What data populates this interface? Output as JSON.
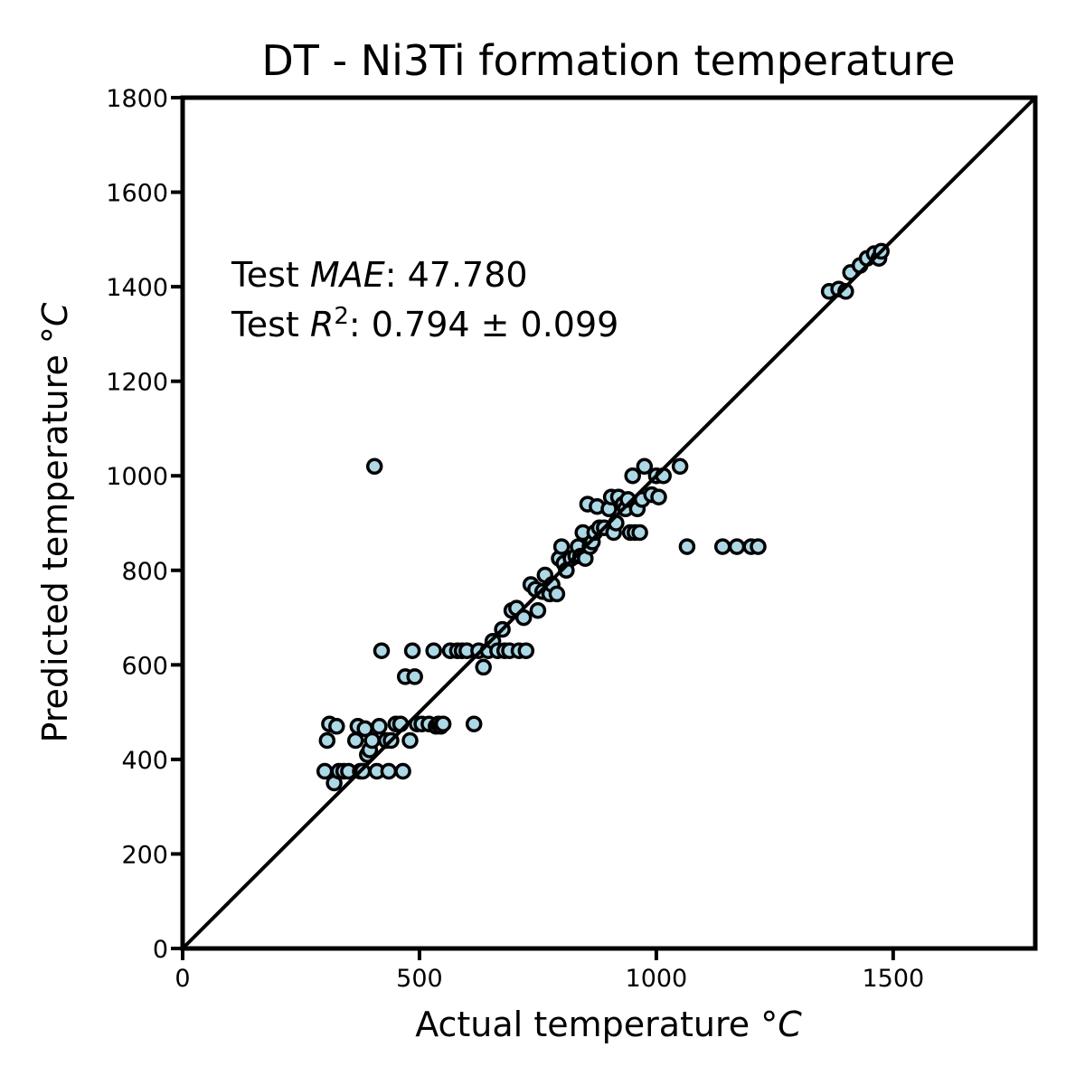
{
  "chart_data": {
    "type": "scatter",
    "title": "DT - Ni3Ti formation temperature",
    "xlabel": "Actual temperature",
    "xlabel_unit": "°C",
    "ylabel": "Predicted temperature",
    "ylabel_unit": "°C",
    "xlim": [
      0,
      1800
    ],
    "ylim": [
      0,
      1800
    ],
    "xticks": [
      0,
      500,
      1000,
      1500
    ],
    "yticks": [
      0,
      200,
      400,
      600,
      800,
      1000,
      1200,
      1400,
      1600,
      1800
    ],
    "reference_line": "y = x",
    "grid": false,
    "marker_color": "#add8e6",
    "marker_edge_color": "#000000",
    "annotations": {
      "mae_prefix": "Test ",
      "mae_symbol": "MAE",
      "mae_value": ": 47.780",
      "r2_prefix": "Test ",
      "r2_symbol": "R",
      "r2_sup": "2",
      "r2_value": ": 0.794 ± 0.099"
    },
    "points": [
      [
        300,
        375
      ],
      [
        305,
        440
      ],
      [
        310,
        475
      ],
      [
        320,
        350
      ],
      [
        325,
        470
      ],
      [
        330,
        375
      ],
      [
        340,
        375
      ],
      [
        350,
        375
      ],
      [
        365,
        440
      ],
      [
        370,
        470
      ],
      [
        375,
        375
      ],
      [
        380,
        375
      ],
      [
        385,
        465
      ],
      [
        390,
        410
      ],
      [
        395,
        420
      ],
      [
        400,
        440
      ],
      [
        405,
        1020
      ],
      [
        410,
        375
      ],
      [
        415,
        470
      ],
      [
        420,
        630
      ],
      [
        430,
        440
      ],
      [
        435,
        375
      ],
      [
        440,
        440
      ],
      [
        450,
        475
      ],
      [
        460,
        475
      ],
      [
        465,
        375
      ],
      [
        470,
        575
      ],
      [
        480,
        440
      ],
      [
        485,
        630
      ],
      [
        490,
        575
      ],
      [
        495,
        475
      ],
      [
        505,
        475
      ],
      [
        520,
        475
      ],
      [
        530,
        630
      ],
      [
        535,
        470
      ],
      [
        540,
        475
      ],
      [
        545,
        470
      ],
      [
        550,
        475
      ],
      [
        565,
        630
      ],
      [
        580,
        630
      ],
      [
        590,
        630
      ],
      [
        600,
        630
      ],
      [
        615,
        475
      ],
      [
        625,
        630
      ],
      [
        635,
        595
      ],
      [
        645,
        630
      ],
      [
        655,
        650
      ],
      [
        665,
        630
      ],
      [
        675,
        675
      ],
      [
        680,
        630
      ],
      [
        690,
        630
      ],
      [
        695,
        715
      ],
      [
        705,
        720
      ],
      [
        710,
        630
      ],
      [
        720,
        700
      ],
      [
        725,
        630
      ],
      [
        735,
        770
      ],
      [
        745,
        760
      ],
      [
        750,
        715
      ],
      [
        760,
        755
      ],
      [
        765,
        790
      ],
      [
        775,
        750
      ],
      [
        780,
        770
      ],
      [
        790,
        750
      ],
      [
        795,
        825
      ],
      [
        800,
        850
      ],
      [
        805,
        815
      ],
      [
        810,
        800
      ],
      [
        820,
        825
      ],
      [
        830,
        830
      ],
      [
        835,
        850
      ],
      [
        840,
        830
      ],
      [
        845,
        880
      ],
      [
        850,
        825
      ],
      [
        855,
        940
      ],
      [
        860,
        850
      ],
      [
        865,
        860
      ],
      [
        870,
        880
      ],
      [
        875,
        935
      ],
      [
        880,
        890
      ],
      [
        890,
        890
      ],
      [
        900,
        930
      ],
      [
        905,
        955
      ],
      [
        910,
        880
      ],
      [
        915,
        900
      ],
      [
        920,
        955
      ],
      [
        930,
        940
      ],
      [
        935,
        930
      ],
      [
        940,
        950
      ],
      [
        945,
        880
      ],
      [
        950,
        1000
      ],
      [
        955,
        880
      ],
      [
        960,
        930
      ],
      [
        965,
        880
      ],
      [
        970,
        950
      ],
      [
        975,
        1020
      ],
      [
        990,
        960
      ],
      [
        1000,
        1000
      ],
      [
        1005,
        955
      ],
      [
        1015,
        1000
      ],
      [
        1050,
        1020
      ],
      [
        1065,
        850
      ],
      [
        1140,
        850
      ],
      [
        1170,
        850
      ],
      [
        1200,
        850
      ],
      [
        1215,
        850
      ],
      [
        1365,
        1390
      ],
      [
        1385,
        1395
      ],
      [
        1400,
        1390
      ],
      [
        1410,
        1430
      ],
      [
        1430,
        1445
      ],
      [
        1445,
        1460
      ],
      [
        1460,
        1470
      ],
      [
        1470,
        1460
      ],
      [
        1475,
        1475
      ]
    ]
  }
}
